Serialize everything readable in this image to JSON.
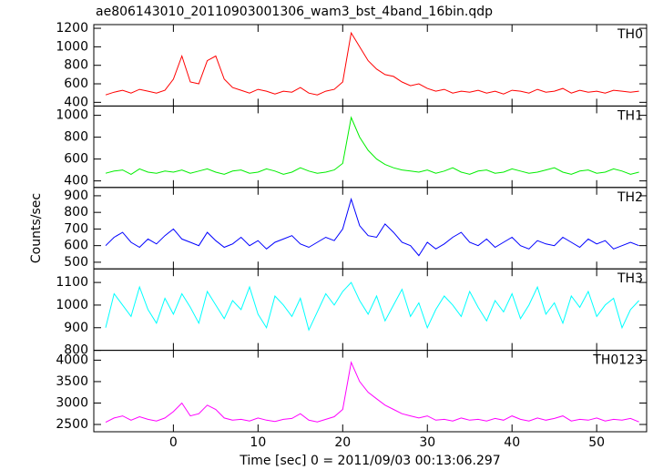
{
  "chart_data": [
    {
      "type": "line",
      "title": "ae806143010_20110903001306_wam3_bst_4band_16bin.qdp",
      "x": [
        -8,
        -7,
        -6,
        -5,
        -4,
        -3,
        -2,
        -1,
        0,
        1,
        2,
        3,
        4,
        5,
        6,
        7,
        8,
        9,
        10,
        11,
        12,
        13,
        14,
        15,
        16,
        17,
        18,
        19,
        20,
        21,
        22,
        23,
        24,
        25,
        26,
        27,
        28,
        29,
        30,
        31,
        32,
        33,
        34,
        35,
        36,
        37,
        38,
        39,
        40,
        41,
        42,
        43,
        44,
        45,
        46,
        47,
        48,
        49,
        50,
        51,
        52,
        53,
        54,
        55
      ],
      "series": [
        {
          "name": "TH0",
          "color": "#ff0000",
          "values": [
            480,
            510,
            530,
            500,
            540,
            520,
            500,
            530,
            650,
            900,
            620,
            600,
            850,
            900,
            650,
            560,
            530,
            500,
            540,
            520,
            490,
            520,
            510,
            560,
            500,
            480,
            520,
            540,
            620,
            1150,
            1000,
            850,
            760,
            700,
            680,
            620,
            580,
            600,
            550,
            520,
            540,
            500,
            520,
            510,
            530,
            500,
            520,
            490,
            530,
            520,
            500,
            540,
            510,
            520,
            550,
            500,
            530,
            510,
            520,
            500,
            530,
            520,
            510,
            520
          ]
        }
      ],
      "xlim": [
        -9.4,
        55.9
      ],
      "xticks": [
        0,
        10,
        20,
        30,
        40,
        50
      ],
      "ylim": [
        360,
        1240
      ],
      "yticks": [
        400,
        600,
        800,
        1000,
        1200
      ],
      "legend": "top-right"
    },
    {
      "type": "line",
      "x": [
        -8,
        -7,
        -6,
        -5,
        -4,
        -3,
        -2,
        -1,
        0,
        1,
        2,
        3,
        4,
        5,
        6,
        7,
        8,
        9,
        10,
        11,
        12,
        13,
        14,
        15,
        16,
        17,
        18,
        19,
        20,
        21,
        22,
        23,
        24,
        25,
        26,
        27,
        28,
        29,
        30,
        31,
        32,
        33,
        34,
        35,
        36,
        37,
        38,
        39,
        40,
        41,
        42,
        43,
        44,
        45,
        46,
        47,
        48,
        49,
        50,
        51,
        52,
        53,
        54,
        55
      ],
      "series": [
        {
          "name": "TH1",
          "color": "#00ee00",
          "values": [
            470,
            490,
            500,
            460,
            510,
            480,
            470,
            490,
            480,
            500,
            470,
            490,
            510,
            480,
            460,
            490,
            500,
            470,
            480,
            510,
            490,
            460,
            480,
            520,
            490,
            470,
            480,
            500,
            560,
            980,
            800,
            680,
            600,
            550,
            520,
            500,
            490,
            480,
            500,
            470,
            490,
            520,
            480,
            460,
            490,
            500,
            470,
            480,
            510,
            490,
            470,
            480,
            500,
            520,
            480,
            460,
            490,
            500,
            470,
            480,
            510,
            490,
            460,
            480
          ]
        }
      ],
      "xlim": [
        -9.4,
        55.9
      ],
      "xticks": [
        0,
        10,
        20,
        30,
        40,
        50
      ],
      "ylim": [
        340,
        1085
      ],
      "yticks": [
        400,
        600,
        800,
        1000
      ],
      "legend": "top-right"
    },
    {
      "type": "line",
      "ylabel": "Counts/sec",
      "x": [
        -8,
        -7,
        -6,
        -5,
        -4,
        -3,
        -2,
        -1,
        0,
        1,
        2,
        3,
        4,
        5,
        6,
        7,
        8,
        9,
        10,
        11,
        12,
        13,
        14,
        15,
        16,
        17,
        18,
        19,
        20,
        21,
        22,
        23,
        24,
        25,
        26,
        27,
        28,
        29,
        30,
        31,
        32,
        33,
        34,
        35,
        36,
        37,
        38,
        39,
        40,
        41,
        42,
        43,
        44,
        45,
        46,
        47,
        48,
        49,
        50,
        51,
        52,
        53,
        54,
        55
      ],
      "series": [
        {
          "name": "TH2",
          "color": "#0000ff",
          "values": [
            600,
            650,
            680,
            620,
            590,
            640,
            610,
            660,
            700,
            640,
            620,
            600,
            680,
            630,
            590,
            610,
            650,
            600,
            630,
            580,
            620,
            640,
            660,
            610,
            590,
            620,
            650,
            630,
            700,
            880,
            720,
            660,
            650,
            730,
            680,
            620,
            600,
            540,
            620,
            580,
            610,
            650,
            680,
            620,
            600,
            640,
            590,
            620,
            650,
            600,
            580,
            630,
            610,
            600,
            650,
            620,
            590,
            640,
            610,
            630,
            580,
            600,
            620,
            600
          ]
        }
      ],
      "xlim": [
        -9.4,
        55.9
      ],
      "xticks": [
        0,
        10,
        20,
        30,
        40,
        50
      ],
      "ylim": [
        460,
        950
      ],
      "yticks": [
        500,
        600,
        700,
        800,
        900
      ],
      "legend": "top-right"
    },
    {
      "type": "line",
      "x": [
        -8,
        -7,
        -6,
        -5,
        -4,
        -3,
        -2,
        -1,
        0,
        1,
        2,
        3,
        4,
        5,
        6,
        7,
        8,
        9,
        10,
        11,
        12,
        13,
        14,
        15,
        16,
        17,
        18,
        19,
        20,
        21,
        22,
        23,
        24,
        25,
        26,
        27,
        28,
        29,
        30,
        31,
        32,
        33,
        34,
        35,
        36,
        37,
        38,
        39,
        40,
        41,
        42,
        43,
        44,
        45,
        46,
        47,
        48,
        49,
        50,
        51,
        52,
        53,
        54,
        55
      ],
      "series": [
        {
          "name": "TH3",
          "color": "#00ffff",
          "values": [
            900,
            1050,
            1000,
            950,
            1080,
            980,
            920,
            1030,
            960,
            1050,
            990,
            920,
            1060,
            1000,
            940,
            1020,
            980,
            1080,
            960,
            900,
            1040,
            1000,
            950,
            1030,
            890,
            970,
            1050,
            1000,
            1060,
            1100,
            1020,
            960,
            1040,
            930,
            1000,
            1070,
            950,
            1010,
            900,
            980,
            1040,
            1000,
            950,
            1060,
            990,
            930,
            1020,
            970,
            1050,
            940,
            1000,
            1080,
            960,
            1010,
            920,
            1040,
            990,
            1060,
            950,
            1000,
            1030,
            900,
            980,
            1020
          ]
        }
      ],
      "xlim": [
        -9.4,
        55.9
      ],
      "xticks": [
        0,
        10,
        20,
        30,
        40,
        50
      ],
      "ylim": [
        800,
        1160
      ],
      "yticks": [
        800,
        900,
        1000,
        1100
      ],
      "legend": "top-right"
    },
    {
      "type": "line",
      "xlabel": "Time [sec] 0 = 2011/09/03 00:13:06.297",
      "x": [
        -8,
        -7,
        -6,
        -5,
        -4,
        -3,
        -2,
        -1,
        0,
        1,
        2,
        3,
        4,
        5,
        6,
        7,
        8,
        9,
        10,
        11,
        12,
        13,
        14,
        15,
        16,
        17,
        18,
        19,
        20,
        21,
        22,
        23,
        24,
        25,
        26,
        27,
        28,
        29,
        30,
        31,
        32,
        33,
        34,
        35,
        36,
        37,
        38,
        39,
        40,
        41,
        42,
        43,
        44,
        45,
        46,
        47,
        48,
        49,
        50,
        51,
        52,
        53,
        54,
        55
      ],
      "series": [
        {
          "name": "TH0123",
          "color": "#ff00ff",
          "values": [
            2550,
            2650,
            2700,
            2600,
            2680,
            2620,
            2580,
            2650,
            2800,
            3000,
            2700,
            2750,
            2950,
            2850,
            2650,
            2600,
            2620,
            2580,
            2650,
            2600,
            2570,
            2620,
            2640,
            2750,
            2600,
            2560,
            2620,
            2680,
            2850,
            3950,
            3500,
            3250,
            3100,
            2950,
            2850,
            2750,
            2700,
            2650,
            2700,
            2600,
            2620,
            2580,
            2650,
            2600,
            2620,
            2580,
            2640,
            2600,
            2700,
            2620,
            2580,
            2650,
            2600,
            2640,
            2700,
            2580,
            2620,
            2600,
            2650,
            2580,
            2620,
            2600,
            2640,
            2560
          ]
        }
      ],
      "xlim": [
        -9.4,
        55.9
      ],
      "xticks": [
        0,
        10,
        20,
        30,
        40,
        50
      ],
      "ylim": [
        2330,
        4230
      ],
      "yticks": [
        2500,
        3000,
        3500,
        4000
      ],
      "legend": "top-right"
    }
  ]
}
